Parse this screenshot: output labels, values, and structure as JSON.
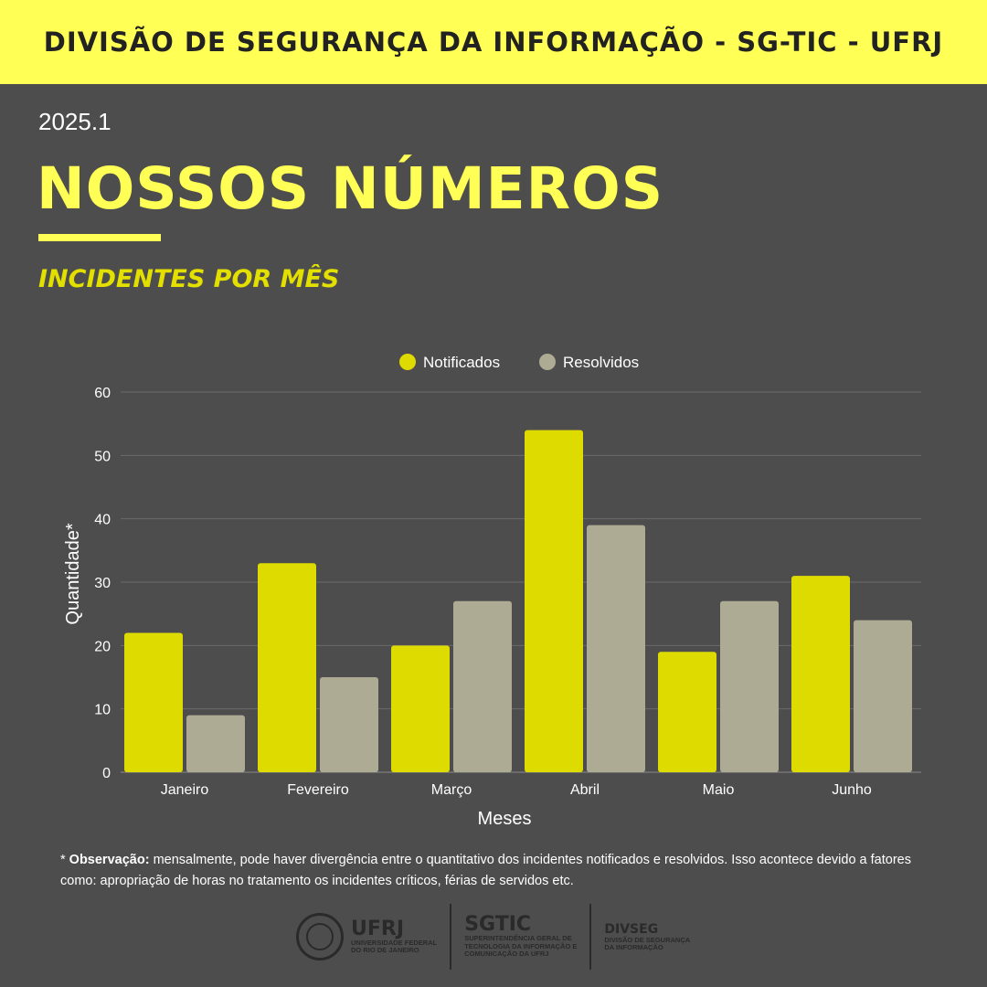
{
  "header": {
    "title": "DIVISÃO DE SEGURANÇA DA INFORMAÇÃO - SG-TIC - UFRJ"
  },
  "period": "2025.1",
  "headline": "NOSSOS NÚMEROS",
  "subheading": "INCIDENTES POR MÊS",
  "colors": {
    "accent": "#ffff55",
    "notificados": "#dedb00",
    "resolvidos": "#aeab94",
    "background": "#4d4d4d"
  },
  "chart_data": {
    "type": "bar",
    "categories": [
      "Janeiro",
      "Fevereiro",
      "Março",
      "Abril",
      "Maio",
      "Junho"
    ],
    "series": [
      {
        "name": "Notificados",
        "values": [
          22,
          33,
          20,
          54,
          19,
          31
        ]
      },
      {
        "name": "Resolvidos",
        "values": [
          9,
          15,
          27,
          39,
          27,
          24
        ]
      }
    ],
    "xlabel": "Meses",
    "ylabel": "Quantidade*",
    "ylim": [
      0,
      60
    ],
    "yticks": [
      0,
      10,
      20,
      30,
      40,
      50,
      60
    ],
    "grid": true,
    "legend": "top-center"
  },
  "footnote": {
    "label": "Observação:",
    "text": "mensalmente, pode haver divergência entre o quantitativo dos incidentes notificados e resolvidos. Isso acontece devido a fatores como: apropriação de horas no tratamento os incidentes críticos, férias de servidos etc."
  },
  "logos": {
    "ufrj": {
      "name": "UFRJ",
      "line1": "UNIVERSIDADE FEDERAL",
      "line2": "DO RIO DE JANEIRO"
    },
    "sgtic": {
      "name": "SGTIC",
      "line1": "SUPERINTENDÊNCIA GERAL DE",
      "line2": "TECNOLOGIA DA INFORMAÇÃO E",
      "line3": "COMUNICAÇÃO DA UFRJ"
    },
    "divseg": {
      "name": "DIVSEG",
      "line1": "DIVISÃO DE SEGURANÇA",
      "line2": "DA INFORMAÇÃO"
    }
  }
}
